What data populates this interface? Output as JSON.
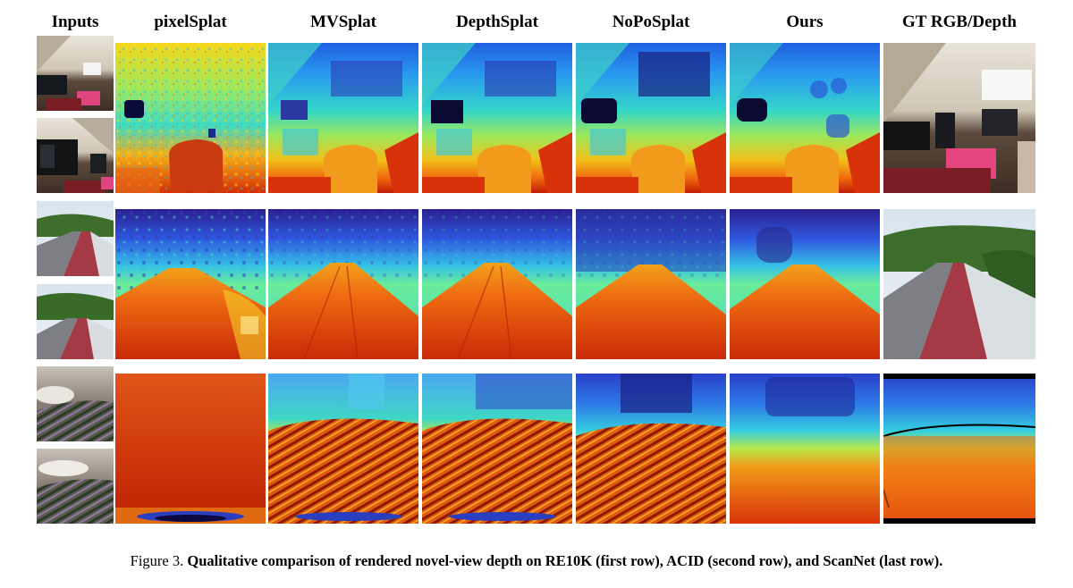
{
  "figure": {
    "columns": [
      {
        "key": "inputs",
        "label": "Inputs"
      },
      {
        "key": "pixelsplat",
        "label": "pixelSplat"
      },
      {
        "key": "mvsplat",
        "label": "MVSplat"
      },
      {
        "key": "depthsplat",
        "label": "DepthSplat"
      },
      {
        "key": "noposplat",
        "label": "NoPoSplat"
      },
      {
        "key": "ours",
        "label": "Ours"
      },
      {
        "key": "gt",
        "label": "GT RGB/Depth"
      }
    ],
    "rows": [
      {
        "dataset": "RE10K",
        "scene": "living room"
      },
      {
        "dataset": "ACID",
        "scene": "coastal road"
      },
      {
        "dataset": "ScanNet",
        "scene": "bedroom"
      }
    ],
    "caption": {
      "number": "Figure 3.",
      "text": "Qualitative comparison of rendered novel-view depth on RE10K (first row), ACID (second row), and ScanNet (last row)."
    }
  }
}
